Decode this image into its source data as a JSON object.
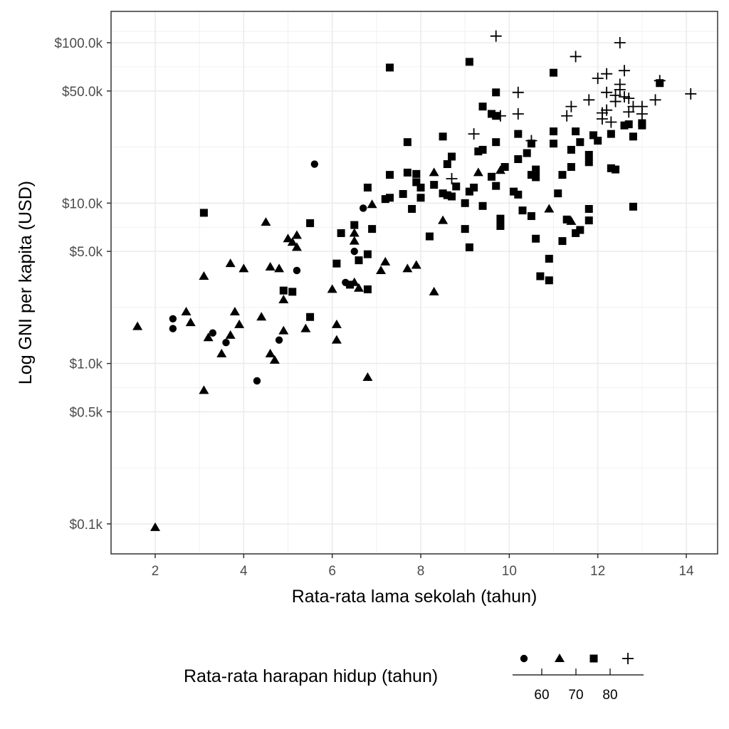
{
  "chart_data": {
    "type": "scatter",
    "title": "",
    "xlabel": "Rata-rata lama sekolah (tahun)",
    "ylabel": "Log GNI per kapita (USD)",
    "xlim": [
      1.0,
      14.7
    ],
    "ylim": [
      60,
      130000
    ],
    "x_scale": "linear",
    "y_scale": "log10",
    "x_ticks": [
      2,
      4,
      6,
      8,
      10,
      12,
      14
    ],
    "x_tick_labels": [
      "2",
      "4",
      "6",
      "8",
      "10",
      "12",
      "14"
    ],
    "y_ticks": [
      100,
      500,
      1000,
      5000,
      10000,
      50000,
      100000
    ],
    "y_tick_labels": [
      "$0.1k",
      "$0.5k",
      "$1.0k",
      "$5.0k",
      "$10.0k",
      "$50.0k",
      "$100.0k"
    ],
    "grid": true,
    "legend": {
      "title": "Rata-rata harapan hidup (tahun)",
      "position": "bottom",
      "type": "binned",
      "shapes": [
        "circle",
        "triangle",
        "square",
        "plus"
      ],
      "bin_breaks": [
        "60",
        "70",
        "80"
      ]
    },
    "series": [
      {
        "name": "< 60",
        "shape": "circle",
        "points": [
          [
            2.4,
            1900
          ],
          [
            2.4,
            1650
          ],
          [
            3.3,
            1550
          ],
          [
            3.6,
            1350
          ],
          [
            4.3,
            780
          ],
          [
            4.8,
            1400
          ],
          [
            5.2,
            3800
          ],
          [
            5.6,
            17500
          ],
          [
            6.5,
            5000
          ],
          [
            6.3,
            3200
          ],
          [
            6.7,
            9300
          ]
        ]
      },
      {
        "name": "60–70",
        "shape": "triangle",
        "points": [
          [
            1.6,
            1700
          ],
          [
            2.0,
            95
          ],
          [
            2.7,
            2100
          ],
          [
            2.8,
            1800
          ],
          [
            3.1,
            3500
          ],
          [
            3.1,
            680
          ],
          [
            3.2,
            1450
          ],
          [
            3.5,
            1150
          ],
          [
            3.7,
            4200
          ],
          [
            3.7,
            1500
          ],
          [
            3.8,
            2100
          ],
          [
            3.9,
            1750
          ],
          [
            4.0,
            3900
          ],
          [
            4.4,
            1950
          ],
          [
            4.5,
            7600
          ],
          [
            4.6,
            4000
          ],
          [
            4.6,
            1150
          ],
          [
            4.7,
            1050
          ],
          [
            4.8,
            3900
          ],
          [
            4.9,
            2500
          ],
          [
            4.9,
            1600
          ],
          [
            5.0,
            6000
          ],
          [
            5.1,
            5700
          ],
          [
            5.2,
            6300
          ],
          [
            5.2,
            5300
          ],
          [
            5.4,
            1650
          ],
          [
            6.0,
            2900
          ],
          [
            6.1,
            1750
          ],
          [
            6.1,
            1400
          ],
          [
            6.5,
            6500
          ],
          [
            6.5,
            5800
          ],
          [
            6.5,
            3200
          ],
          [
            6.6,
            2950
          ],
          [
            6.8,
            820
          ],
          [
            6.9,
            9800
          ],
          [
            7.1,
            3800
          ],
          [
            7.2,
            4300
          ],
          [
            7.7,
            3900
          ],
          [
            7.9,
            4100
          ],
          [
            8.3,
            2800
          ],
          [
            8.3,
            15500
          ],
          [
            8.5,
            7800
          ],
          [
            9.3,
            15500
          ],
          [
            9.8,
            16000
          ],
          [
            10.9,
            9200
          ],
          [
            11.4,
            7700
          ]
        ]
      },
      {
        "name": "70–80",
        "shape": "square",
        "points": [
          [
            3.1,
            8700
          ],
          [
            4.9,
            2850
          ],
          [
            5.1,
            2800
          ],
          [
            5.5,
            1950
          ],
          [
            5.5,
            7500
          ],
          [
            6.1,
            4200
          ],
          [
            6.2,
            6500
          ],
          [
            6.4,
            3100
          ],
          [
            6.5,
            7300
          ],
          [
            6.6,
            4400
          ],
          [
            6.8,
            2900
          ],
          [
            6.8,
            4800
          ],
          [
            6.8,
            12500
          ],
          [
            6.9,
            6900
          ],
          [
            7.2,
            10600
          ],
          [
            7.3,
            10800
          ],
          [
            7.3,
            15000
          ],
          [
            7.3,
            70000
          ],
          [
            7.6,
            11400
          ],
          [
            7.7,
            24000
          ],
          [
            7.7,
            15500
          ],
          [
            7.8,
            9200
          ],
          [
            7.9,
            13500
          ],
          [
            7.9,
            15200
          ],
          [
            8.0,
            12500
          ],
          [
            8.0,
            10800
          ],
          [
            8.2,
            6200
          ],
          [
            8.3,
            13000
          ],
          [
            8.5,
            11500
          ],
          [
            8.5,
            26000
          ],
          [
            8.6,
            11200
          ],
          [
            8.6,
            17500
          ],
          [
            8.7,
            11000
          ],
          [
            8.7,
            19500
          ],
          [
            8.8,
            12700
          ],
          [
            9.0,
            6900
          ],
          [
            9.0,
            10000
          ],
          [
            9.1,
            5300
          ],
          [
            9.1,
            76000
          ],
          [
            9.1,
            11800
          ],
          [
            9.2,
            12500
          ],
          [
            9.3,
            21000
          ],
          [
            9.4,
            9600
          ],
          [
            9.4,
            21500
          ],
          [
            9.4,
            40000
          ],
          [
            9.6,
            14600
          ],
          [
            9.6,
            36000
          ],
          [
            9.7,
            12800
          ],
          [
            9.7,
            24000
          ],
          [
            9.7,
            49000
          ],
          [
            9.7,
            35000
          ],
          [
            9.8,
            7200
          ],
          [
            9.8,
            8000
          ],
          [
            9.9,
            16800
          ],
          [
            10.1,
            11800
          ],
          [
            10.2,
            18800
          ],
          [
            10.2,
            27000
          ],
          [
            10.2,
            11300
          ],
          [
            10.3,
            9000
          ],
          [
            10.4,
            20500
          ],
          [
            10.5,
            15000
          ],
          [
            10.5,
            23500
          ],
          [
            10.5,
            8300
          ],
          [
            10.6,
            16200
          ],
          [
            10.6,
            14500
          ],
          [
            10.6,
            6000
          ],
          [
            10.7,
            3500
          ],
          [
            10.9,
            3300
          ],
          [
            10.9,
            4500
          ],
          [
            11.0,
            65000
          ],
          [
            11.0,
            28000
          ],
          [
            11.0,
            23500
          ],
          [
            11.1,
            11500
          ],
          [
            11.2,
            5800
          ],
          [
            11.2,
            15000
          ],
          [
            11.3,
            7900
          ],
          [
            11.4,
            16800
          ],
          [
            11.4,
            21500
          ],
          [
            11.5,
            28000
          ],
          [
            11.5,
            6500
          ],
          [
            11.6,
            6800
          ],
          [
            11.6,
            24000
          ],
          [
            11.8,
            18000
          ],
          [
            11.8,
            20000
          ],
          [
            11.8,
            7800
          ],
          [
            11.8,
            9200
          ],
          [
            11.9,
            26500
          ],
          [
            12.0,
            24500
          ],
          [
            12.3,
            27000
          ],
          [
            12.3,
            16500
          ],
          [
            12.4,
            16200
          ],
          [
            12.6,
            30500
          ],
          [
            12.7,
            31000
          ],
          [
            12.8,
            26000
          ],
          [
            12.8,
            9500
          ],
          [
            13.0,
            31500
          ],
          [
            13.0,
            30500
          ],
          [
            13.4,
            56000
          ]
        ]
      },
      {
        "name": "> 80",
        "shape": "plus",
        "points": [
          [
            8.7,
            14200
          ],
          [
            9.2,
            27000
          ],
          [
            9.7,
            110000
          ],
          [
            9.8,
            35000
          ],
          [
            10.2,
            49000
          ],
          [
            10.2,
            36000
          ],
          [
            10.5,
            24500
          ],
          [
            11.3,
            35000
          ],
          [
            11.4,
            40000
          ],
          [
            11.5,
            82000
          ],
          [
            11.8,
            44000
          ],
          [
            12.0,
            60000
          ],
          [
            12.1,
            33500
          ],
          [
            12.1,
            36500
          ],
          [
            12.2,
            49000
          ],
          [
            12.2,
            64000
          ],
          [
            12.2,
            38000
          ],
          [
            12.3,
            32000
          ],
          [
            12.4,
            43000
          ],
          [
            12.4,
            47000
          ],
          [
            12.5,
            100000
          ],
          [
            12.5,
            55000
          ],
          [
            12.5,
            51000
          ],
          [
            12.6,
            67000
          ],
          [
            12.6,
            46000
          ],
          [
            12.7,
            45000
          ],
          [
            12.7,
            37000
          ],
          [
            12.8,
            40000
          ],
          [
            13.0,
            36000
          ],
          [
            13.0,
            40000
          ],
          [
            13.3,
            44000
          ],
          [
            13.4,
            58000
          ],
          [
            14.1,
            48000
          ]
        ]
      }
    ]
  }
}
